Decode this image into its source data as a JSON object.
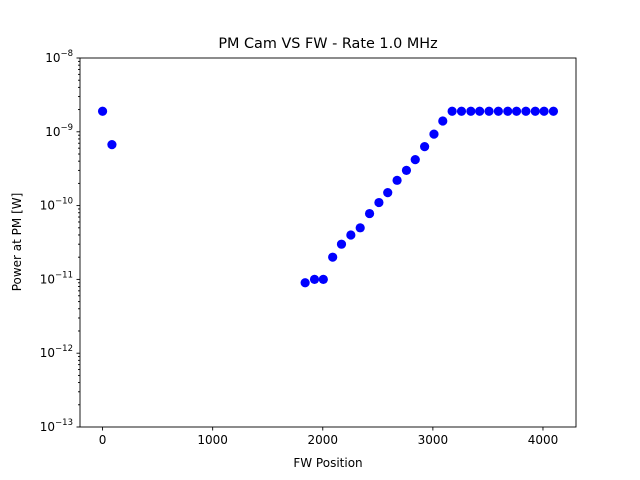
{
  "chart_data": {
    "type": "scatter",
    "title": "PM Cam VS FW - Rate 1.0 MHz",
    "xlabel": "FW Position",
    "ylabel": "Power at PM [W]",
    "xlim": [
      -205,
      4300
    ],
    "ylim": [
      1e-13,
      1e-08
    ],
    "yscale": "log",
    "grid": false,
    "x_ticks": [
      {
        "value": 0,
        "label": "0"
      },
      {
        "value": 1000,
        "label": "1000"
      },
      {
        "value": 2000,
        "label": "2000"
      },
      {
        "value": 3000,
        "label": "3000"
      },
      {
        "value": 4000,
        "label": "4000"
      }
    ],
    "y_ticks": [
      {
        "value": 1e-13,
        "base": "10",
        "exp": "−13"
      },
      {
        "value": 1e-12,
        "base": "10",
        "exp": "−12"
      },
      {
        "value": 1e-11,
        "base": "10",
        "exp": "−11"
      },
      {
        "value": 1e-10,
        "base": "10",
        "exp": "−10"
      },
      {
        "value": 1e-09,
        "base": "10",
        "exp": "−9"
      },
      {
        "value": 1e-08,
        "base": "10",
        "exp": "−8"
      }
    ],
    "series": [
      {
        "color": "#0000ff",
        "marker": "circle",
        "points": [
          {
            "x": 0,
            "y": 1.9e-09
          },
          {
            "x": 85,
            "y": 6.7e-10
          },
          {
            "x": 1840,
            "y": 9e-12
          },
          {
            "x": 1925,
            "y": 1e-11
          },
          {
            "x": 2005,
            "y": 1e-11
          },
          {
            "x": 2090,
            "y": 2e-11
          },
          {
            "x": 2170,
            "y": 3e-11
          },
          {
            "x": 2255,
            "y": 4e-11
          },
          {
            "x": 2340,
            "y": 5e-11
          },
          {
            "x": 2425,
            "y": 7.8e-11
          },
          {
            "x": 2510,
            "y": 1.1e-10
          },
          {
            "x": 2590,
            "y": 1.5e-10
          },
          {
            "x": 2675,
            "y": 2.2e-10
          },
          {
            "x": 2760,
            "y": 3e-10
          },
          {
            "x": 2840,
            "y": 4.2e-10
          },
          {
            "x": 2925,
            "y": 6.3e-10
          },
          {
            "x": 3010,
            "y": 9.3e-10
          },
          {
            "x": 3090,
            "y": 1.4e-09
          },
          {
            "x": 3175,
            "y": 1.9e-09
          },
          {
            "x": 3260,
            "y": 1.9e-09
          },
          {
            "x": 3345,
            "y": 1.9e-09
          },
          {
            "x": 3425,
            "y": 1.9e-09
          },
          {
            "x": 3510,
            "y": 1.9e-09
          },
          {
            "x": 3595,
            "y": 1.9e-09
          },
          {
            "x": 3680,
            "y": 1.9e-09
          },
          {
            "x": 3760,
            "y": 1.9e-09
          },
          {
            "x": 3845,
            "y": 1.9e-09
          },
          {
            "x": 3930,
            "y": 1.9e-09
          },
          {
            "x": 4010,
            "y": 1.9e-09
          },
          {
            "x": 4095,
            "y": 1.9e-09
          }
        ]
      }
    ]
  }
}
